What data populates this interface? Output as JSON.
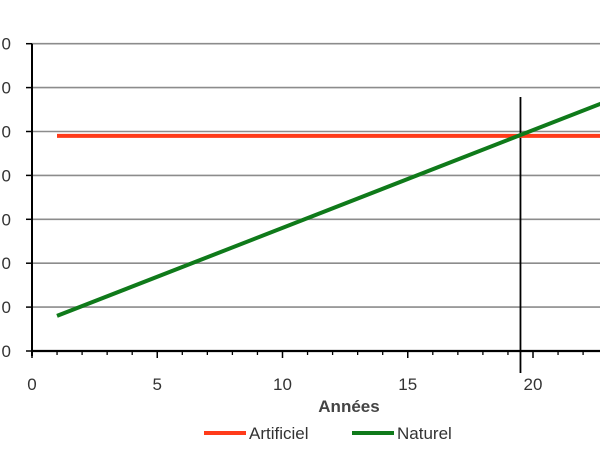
{
  "chart_data": {
    "type": "line",
    "title": "",
    "xlabel": "Années",
    "ylabel": "",
    "xlim": [
      0,
      23
    ],
    "ylim": [
      0,
      7
    ],
    "grid": true,
    "legend": "bottom",
    "x_ticks": [
      0,
      5,
      10,
      15,
      20
    ],
    "y_tick_labels": [
      "0",
      "0",
      "0",
      "0",
      "0",
      "0",
      "0",
      "0"
    ],
    "vertical_marker": {
      "x": 19.5
    },
    "series": [
      {
        "name": "Artificiel",
        "color": "#ff3b1a",
        "x": [
          1,
          23
        ],
        "y": [
          4.9,
          4.9
        ]
      },
      {
        "name": "Naturel",
        "color": "#0f7a1a",
        "x": [
          1,
          23
        ],
        "y": [
          0.8,
          5.7
        ]
      }
    ]
  }
}
